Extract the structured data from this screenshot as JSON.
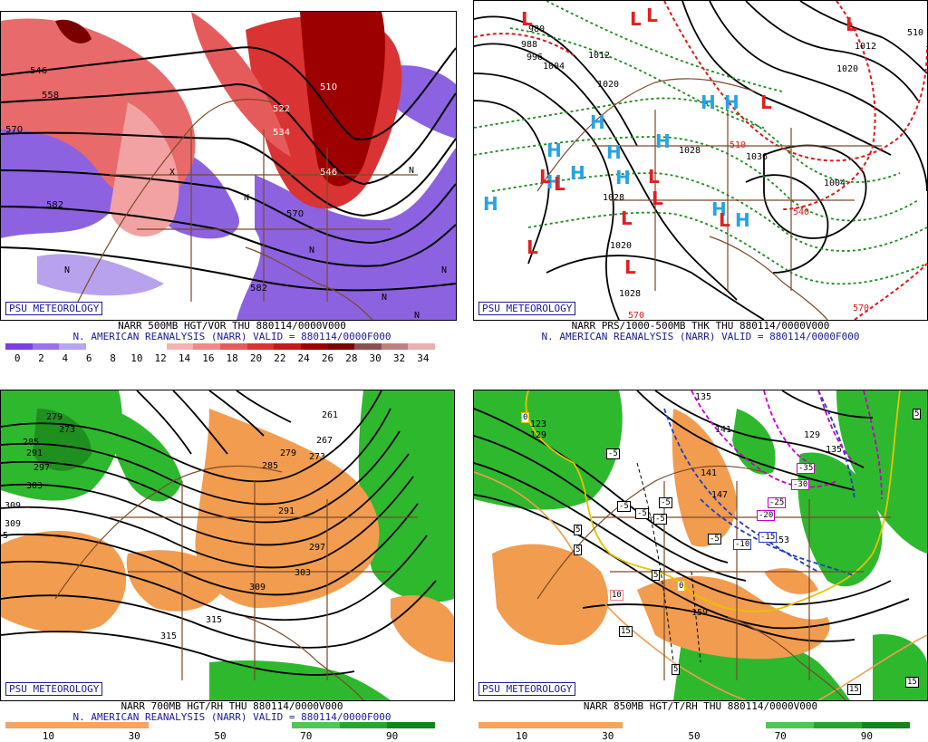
{
  "panels": {
    "tl": {
      "badge": "PSU METEOROLOGY",
      "caption1": "NARR 500MB HGT/VOR THU 880114/0000V000",
      "caption2": "N. AMERICAN REANALYSIS (NARR) VALID = 880114/0000F000",
      "colors": [
        "#7b3fe4",
        "#9a72e8",
        "#b9a4ee",
        "#ffffff",
        "#ffffff",
        "#ffffff",
        "#f6b2b2",
        "#ef8a8a",
        "#e55b5b",
        "#d93333",
        "#c41a1a",
        "#9c0000",
        "#7a0000",
        "#8c5050",
        "#c08080",
        "#e8b0b0"
      ],
      "ticks": [
        "0",
        "2",
        "4",
        "6",
        "8",
        "10",
        "12",
        "14",
        "16",
        "18",
        "20",
        "22",
        "24",
        "26",
        "28",
        "30",
        "32",
        "34"
      ],
      "labels": [
        "546",
        "558",
        "570",
        "582",
        "510",
        "522",
        "534",
        "546",
        "570",
        "582"
      ],
      "markers": [
        "N",
        "N",
        "N",
        "N",
        "N",
        "X",
        "N",
        "N"
      ]
    },
    "tr": {
      "badge": "PSU METEOROLOGY",
      "caption1": "NARR PRS/1000-500MB THK THU 880114/0000V000",
      "caption2": "N. AMERICAN REANALYSIS (NARR) VALID = 880114/0000F000",
      "labels": [
        "980",
        "988",
        "996",
        "1004",
        "1012",
        "1020",
        "1028",
        "1036",
        "1028",
        "1020",
        "1028",
        "1020",
        "1012",
        "1004",
        "510",
        "540",
        "570",
        "570",
        "510"
      ],
      "highs": [
        "H",
        "H",
        "H",
        "H",
        "H",
        "H",
        "H",
        "H",
        "H",
        "H",
        "H",
        "H"
      ],
      "lows": [
        "L",
        "L",
        "L",
        "L",
        "L",
        "L",
        "L",
        "L",
        "L",
        "L",
        "L",
        "L",
        "L"
      ]
    },
    "bl": {
      "badge": "PSU METEOROLOGY",
      "caption1": "NARR 700MB HGT/RH THU 880114/0000V000",
      "caption2": "N. AMERICAN REANALYSIS (NARR) VALID = 880114/0000F000",
      "colors": [
        "#f4a460",
        "#f4a460",
        "#f4a460",
        "#ffffff",
        "#ffffff",
        "#ffffff",
        "#52c552",
        "#2aa52a",
        "#148414"
      ],
      "ticks": [
        "10",
        "30",
        "50",
        "70",
        "90"
      ],
      "labels": [
        "279",
        "273",
        "285",
        "291",
        "297",
        "303",
        "309",
        "315",
        "261",
        "267",
        "279",
        "273",
        "285",
        "291",
        "297",
        "303",
        "309",
        "315",
        "309",
        "5"
      ]
    },
    "br": {
      "badge": "PSU METEOROLOGY",
      "caption1": "NARR 850MB HGT/T/RH THU 880114/0000V000",
      "caption2": "",
      "colors": [
        "#f4a460",
        "#f4a460",
        "#f4a460",
        "#ffffff",
        "#ffffff",
        "#ffffff",
        "#52c552",
        "#2aa52a",
        "#148414"
      ],
      "ticks": [
        "10",
        "30",
        "50",
        "70",
        "90"
      ],
      "labels": [
        "135",
        "141",
        "129",
        "123",
        "129",
        "135",
        "141",
        "147",
        "153",
        "159"
      ],
      "boxes": [
        "0",
        "-5",
        "-5",
        "-5",
        "-5",
        "-5",
        "-5",
        "5",
        "5",
        "10",
        "15",
        "15",
        "5",
        "0",
        "-10",
        "-15",
        "-20",
        "-25",
        "-30",
        "-35",
        "5",
        "15",
        "15",
        "5"
      ]
    }
  }
}
